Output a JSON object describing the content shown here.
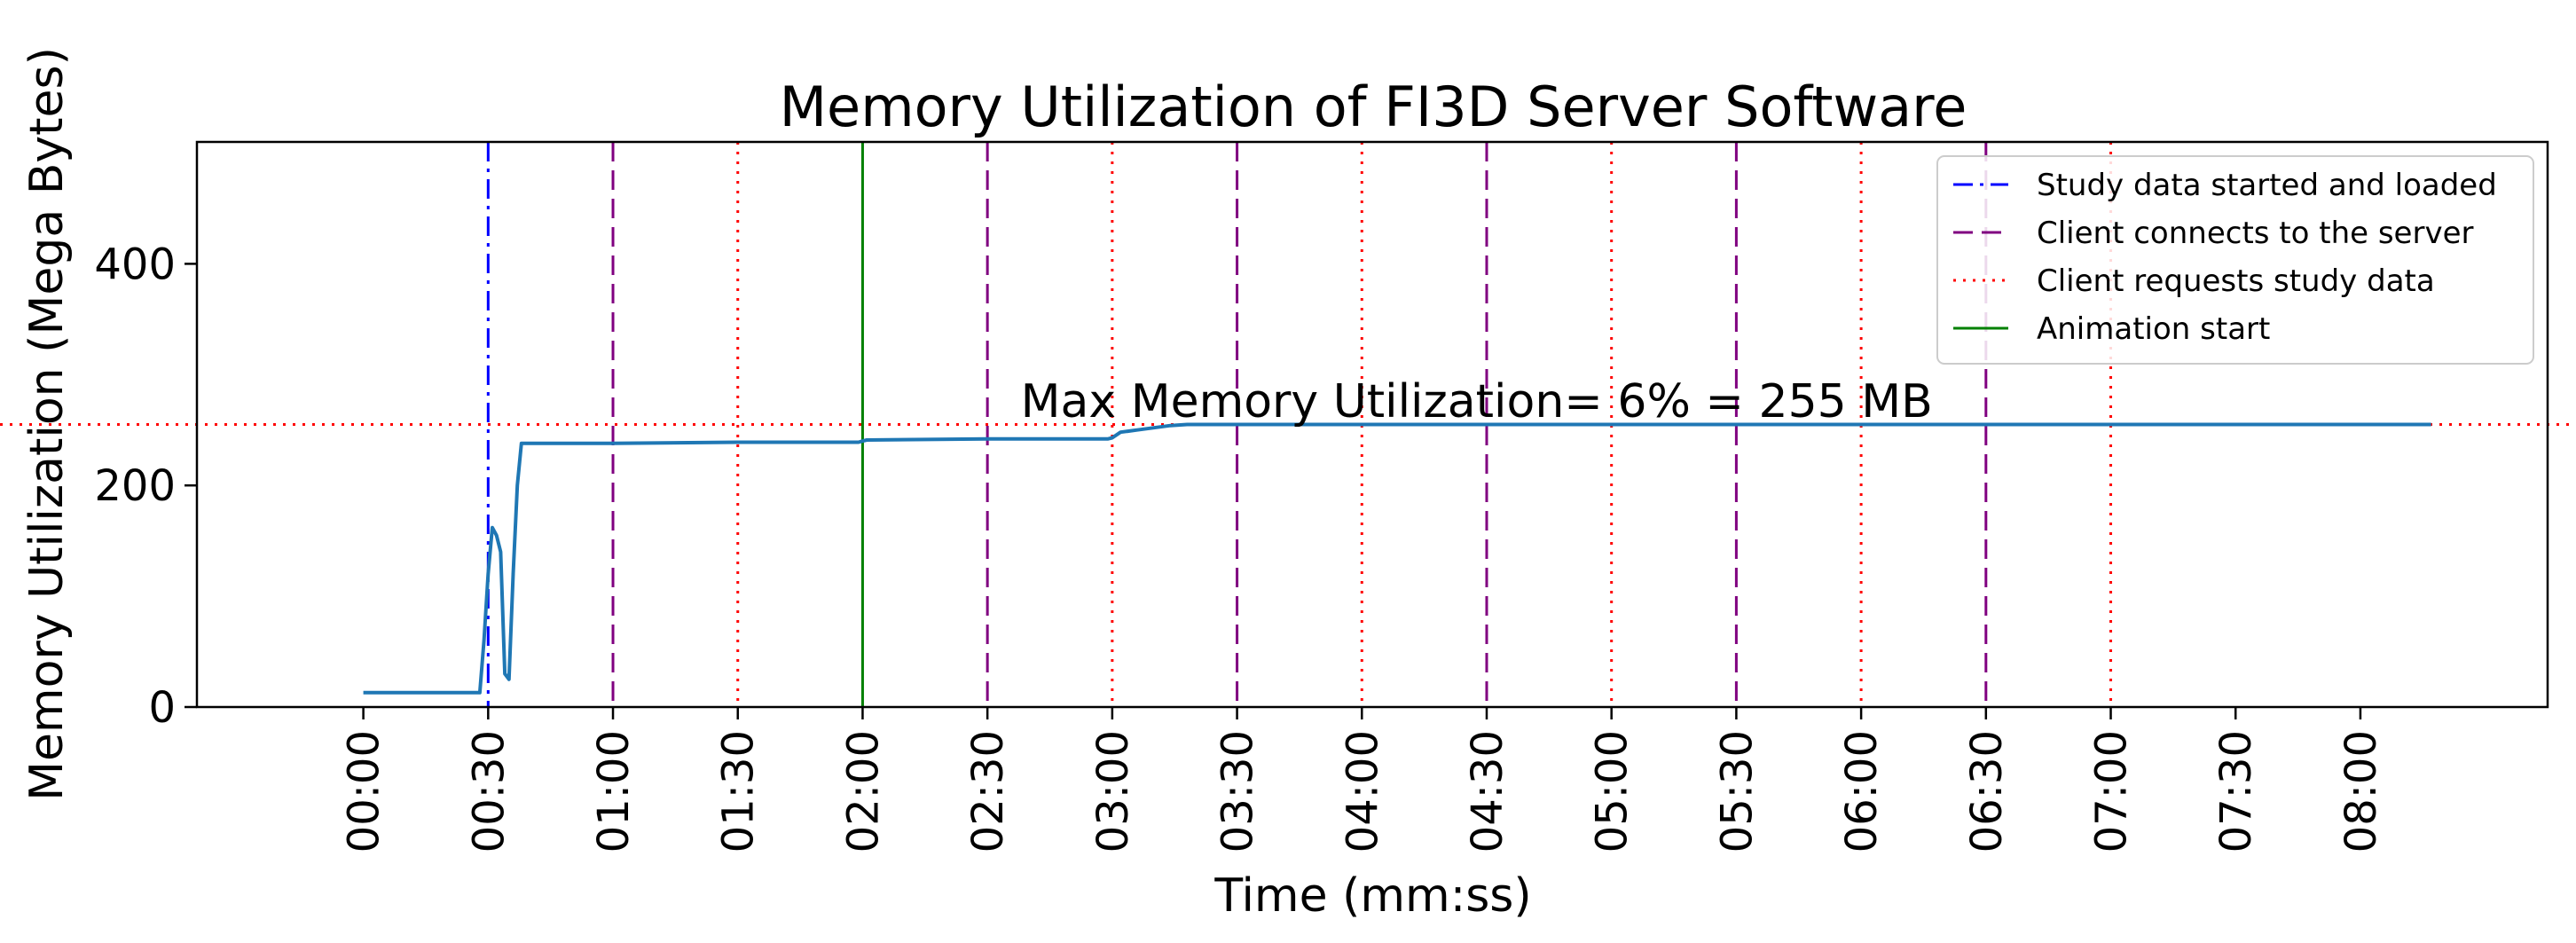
{
  "chart_data": {
    "type": "line",
    "title": "Memory Utilization of FI3D Server Software",
    "xlabel": "Time (mm:ss)",
    "ylabel": "Memory Utilization (Mega Bytes)",
    "x_unit": "seconds",
    "xlim": [
      -40,
      525
    ],
    "ylim": [
      0,
      510
    ],
    "x_ticks": [
      0,
      30,
      60,
      90,
      120,
      150,
      180,
      210,
      240,
      270,
      300,
      330,
      360,
      390,
      420,
      450,
      480
    ],
    "x_tick_labels": [
      "00:00",
      "00:30",
      "01:00",
      "01:30",
      "02:00",
      "02:30",
      "03:00",
      "03:30",
      "04:00",
      "04:30",
      "05:00",
      "05:30",
      "06:00",
      "06:30",
      "07:00",
      "07:30",
      "08:00"
    ],
    "y_ticks": [
      0,
      200,
      400
    ],
    "y_tick_labels": [
      "0",
      "200",
      "400"
    ],
    "grid": false,
    "legend_position": "top-right",
    "series": [
      {
        "name": "",
        "color": "#1f77b4",
        "x": [
          0,
          10,
          20,
          28,
          29,
          30,
          31,
          32,
          33,
          34,
          35,
          36,
          37,
          38,
          40,
          60,
          90,
          119,
          120,
          121,
          150,
          179,
          180,
          182,
          186,
          190,
          194,
          198,
          210,
          240,
          270,
          300,
          330,
          360,
          390,
          420,
          450,
          480,
          497
        ],
        "y": [
          13,
          13,
          13,
          13,
          60,
          120,
          162,
          155,
          140,
          30,
          25,
          120,
          200,
          238,
          238,
          238,
          239,
          239,
          240,
          241,
          242,
          242,
          243,
          248,
          250,
          252,
          254,
          255,
          255,
          255,
          255,
          255,
          255,
          255,
          255,
          255,
          255,
          255,
          255
        ]
      }
    ],
    "vertical_markers": [
      {
        "name": "Study data started and loaded",
        "color": "#0000ff",
        "style": "dashdot",
        "x": [
          30
        ]
      },
      {
        "name": "Client connects to the server",
        "color": "#800080",
        "style": "dashed",
        "x": [
          60,
          150,
          210,
          270,
          330,
          390
        ]
      },
      {
        "name": "Client requests study data",
        "color": "#ff0000",
        "style": "dotted",
        "x": [
          90,
          180,
          240,
          300,
          360,
          420
        ]
      },
      {
        "name": "Animation start",
        "color": "#008000",
        "style": "solid",
        "x": [
          120
        ]
      }
    ],
    "horizontal_markers": [
      {
        "color": "#ff0000",
        "style": "dotted",
        "y": 255
      }
    ],
    "annotations": [
      {
        "text": "Max Memory Utilization= 6% = 255 MB",
        "x": 158,
        "y": 262
      }
    ]
  }
}
